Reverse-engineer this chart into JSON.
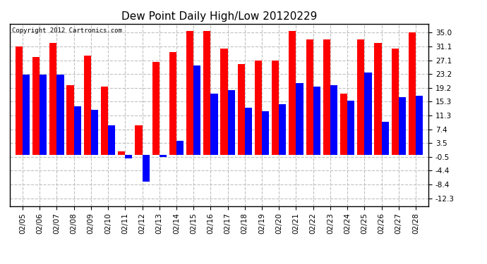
{
  "title": "Dew Point Daily High/Low 20120229",
  "copyright": "Copyright 2012 Cartronics.com",
  "dates": [
    "02/05",
    "02/06",
    "02/07",
    "02/08",
    "02/09",
    "02/10",
    "02/11",
    "02/12",
    "02/13",
    "02/14",
    "02/15",
    "02/16",
    "02/17",
    "02/18",
    "02/19",
    "02/20",
    "02/21",
    "02/22",
    "02/23",
    "02/24",
    "02/25",
    "02/26",
    "02/27",
    "02/28"
  ],
  "highs": [
    31.0,
    28.0,
    32.0,
    20.0,
    28.5,
    19.5,
    1.0,
    8.5,
    26.5,
    29.5,
    35.5,
    35.5,
    30.5,
    26.0,
    27.0,
    27.0,
    35.5,
    33.0,
    33.0,
    17.5,
    33.0,
    32.0,
    30.5,
    35.0
  ],
  "lows": [
    23.0,
    23.0,
    23.0,
    14.0,
    13.0,
    8.5,
    -1.0,
    -7.5,
    -0.5,
    4.0,
    25.5,
    17.5,
    18.5,
    13.5,
    12.5,
    14.5,
    20.5,
    19.5,
    20.0,
    15.5,
    23.5,
    9.5,
    16.5,
    17.0
  ],
  "high_color": "#ff0000",
  "low_color": "#0000ff",
  "bg_color": "#ffffff",
  "plot_bg_color": "#ffffff",
  "grid_color": "#c0c0c0",
  "yticks": [
    -12.3,
    -8.4,
    -4.4,
    -0.5,
    3.5,
    7.4,
    11.3,
    15.3,
    19.2,
    23.2,
    27.1,
    31.1,
    35.0
  ],
  "ylim": [
    -14.5,
    37.5
  ],
  "bar_width": 0.42
}
